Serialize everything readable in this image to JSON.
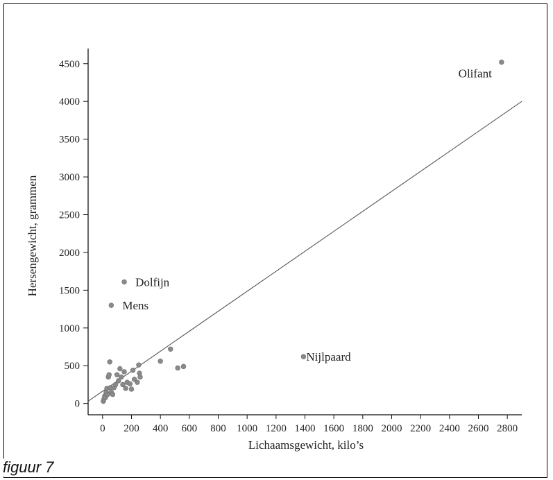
{
  "chart_data": {
    "type": "scatter",
    "title": "",
    "xlabel": "Lichaamsgewicht, kilo’s",
    "ylabel": "Hersengewicht, grammen",
    "xlim": [
      -100,
      2900
    ],
    "ylim": [
      -150,
      4700
    ],
    "xticks": [
      0,
      200,
      400,
      600,
      800,
      1000,
      1200,
      1400,
      1600,
      1800,
      2000,
      2200,
      2400,
      2600,
      2800
    ],
    "yticks": [
      0,
      500,
      1000,
      1500,
      2000,
      2500,
      3000,
      3500,
      4000,
      4500
    ],
    "grid": false,
    "point_color": "#8a8a8a",
    "line_color": "#555555",
    "trendline": {
      "from": [
        -100,
        30
      ],
      "to": [
        2900,
        4000
      ]
    },
    "labeled_points": [
      {
        "label": "Olifant",
        "x": 2760,
        "y": 4520
      },
      {
        "label": "Dolfijn",
        "x": 150,
        "y": 1610
      },
      {
        "label": "Mens",
        "x": 60,
        "y": 1300
      },
      {
        "label": "Nijlpaard",
        "x": 1390,
        "y": 620
      }
    ],
    "points": [
      {
        "x": 5,
        "y": 30
      },
      {
        "x": 10,
        "y": 60
      },
      {
        "x": 15,
        "y": 100
      },
      {
        "x": 20,
        "y": 80
      },
      {
        "x": 25,
        "y": 150
      },
      {
        "x": 30,
        "y": 200
      },
      {
        "x": 35,
        "y": 120
      },
      {
        "x": 40,
        "y": 350
      },
      {
        "x": 45,
        "y": 380
      },
      {
        "x": 50,
        "y": 550
      },
      {
        "x": 55,
        "y": 210
      },
      {
        "x": 60,
        "y": 150
      },
      {
        "x": 70,
        "y": 120
      },
      {
        "x": 80,
        "y": 210
      },
      {
        "x": 90,
        "y": 250
      },
      {
        "x": 100,
        "y": 380
      },
      {
        "x": 110,
        "y": 300
      },
      {
        "x": 120,
        "y": 460
      },
      {
        "x": 130,
        "y": 350
      },
      {
        "x": 140,
        "y": 250
      },
      {
        "x": 150,
        "y": 420
      },
      {
        "x": 160,
        "y": 200
      },
      {
        "x": 170,
        "y": 280
      },
      {
        "x": 190,
        "y": 260
      },
      {
        "x": 200,
        "y": 190
      },
      {
        "x": 210,
        "y": 440
      },
      {
        "x": 220,
        "y": 320
      },
      {
        "x": 240,
        "y": 280
      },
      {
        "x": 250,
        "y": 510
      },
      {
        "x": 255,
        "y": 400
      },
      {
        "x": 260,
        "y": 350
      },
      {
        "x": 400,
        "y": 560
      },
      {
        "x": 470,
        "y": 720
      },
      {
        "x": 520,
        "y": 470
      },
      {
        "x": 560,
        "y": 490
      }
    ]
  },
  "caption": "figuur 7"
}
